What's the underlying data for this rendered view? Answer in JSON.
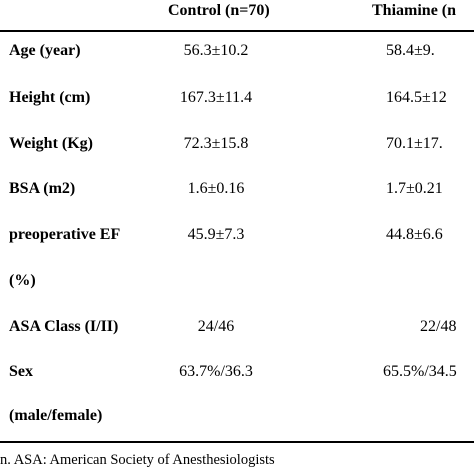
{
  "table": {
    "headers": {
      "control": "Control (n=70)",
      "thiamine": "Thiamine (n"
    },
    "rows": [
      {
        "label": "Age (year)",
        "control": "56.3±10.2",
        "thiamine": "58.4±9."
      },
      {
        "label": "Height (cm)",
        "control": "167.3±11.4",
        "thiamine": "164.5±12"
      },
      {
        "label": "Weight (Kg)",
        "control": "72.3±15.8",
        "thiamine": "70.1±17."
      },
      {
        "label": "BSA (m2)",
        "control": "1.6±0.16",
        "thiamine": "1.7±0.21"
      },
      {
        "label": "preoperative EF",
        "control": "45.9±7.3",
        "thiamine": "44.8±6.6"
      },
      {
        "label": "(%)",
        "control": "",
        "thiamine": ""
      },
      {
        "label": "ASA Class (I/II)",
        "control": "24/46",
        "thiamine": "22/48"
      },
      {
        "label": "Sex",
        "control": "63.7%/36.3",
        "thiamine": "65.5%/34.5"
      },
      {
        "label": "(male/female)",
        "control": "",
        "thiamine": ""
      }
    ]
  },
  "footnote": "n. ASA: American Society of Anesthesiologists"
}
